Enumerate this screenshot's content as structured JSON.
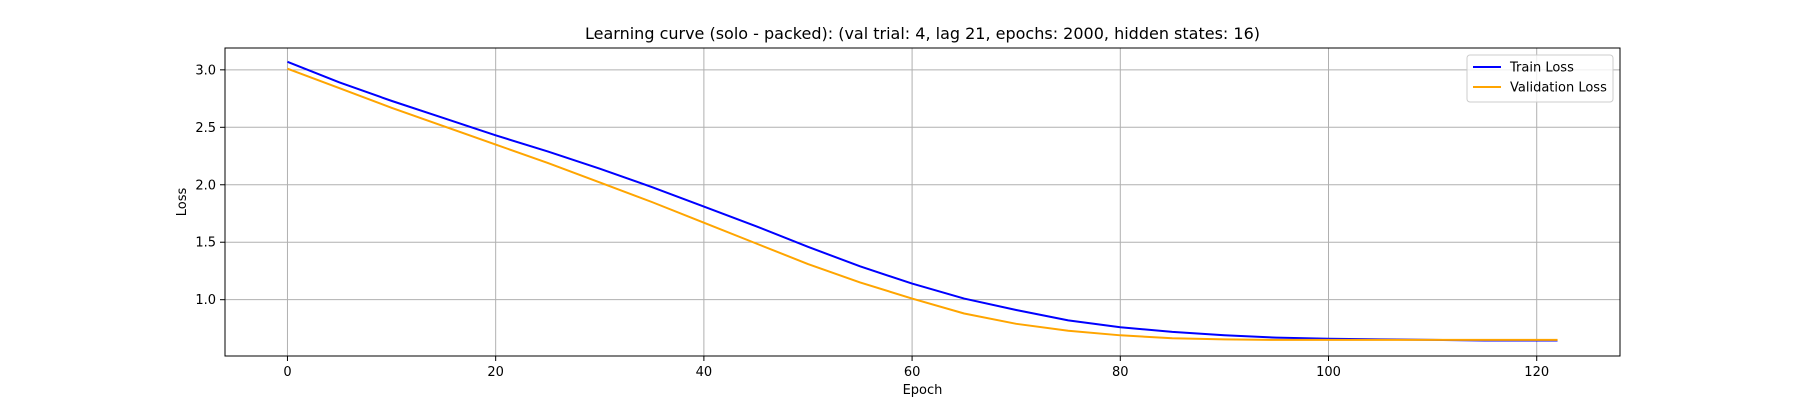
{
  "chart_data": {
    "type": "line",
    "title": "Learning curve (solo - packed): (val trial: 4, lag 21, epochs: 2000, hidden states: 16)",
    "xlabel": "Epoch",
    "ylabel": "Loss",
    "xlim": [
      -6,
      128
    ],
    "ylim": [
      0.51,
      3.19
    ],
    "xticks": [
      0,
      20,
      40,
      60,
      80,
      100,
      120
    ],
    "yticks": [
      1.0,
      1.5,
      2.0,
      2.5,
      3.0
    ],
    "ytick_labels": [
      "1.0",
      "1.5",
      "2.0",
      "2.5",
      "3.0"
    ],
    "grid": true,
    "legend_position": "top-right",
    "series": [
      {
        "name": "Train Loss",
        "color": "#0000ff",
        "x": [
          0,
          5,
          10,
          15,
          20,
          25,
          30,
          35,
          40,
          45,
          50,
          55,
          60,
          65,
          70,
          75,
          80,
          85,
          90,
          95,
          100,
          105,
          110,
          115,
          120,
          122
        ],
        "values": [
          3.07,
          2.89,
          2.73,
          2.58,
          2.43,
          2.29,
          2.14,
          1.98,
          1.81,
          1.64,
          1.46,
          1.29,
          1.14,
          1.01,
          0.91,
          0.82,
          0.76,
          0.72,
          0.69,
          0.67,
          0.66,
          0.655,
          0.65,
          0.645,
          0.645,
          0.645
        ]
      },
      {
        "name": "Validation Loss",
        "color": "#ffa500",
        "x": [
          0,
          5,
          10,
          15,
          20,
          25,
          30,
          35,
          40,
          45,
          50,
          55,
          60,
          65,
          70,
          75,
          80,
          85,
          90,
          95,
          100,
          105,
          110,
          115,
          120,
          122
        ],
        "values": [
          3.01,
          2.84,
          2.67,
          2.51,
          2.35,
          2.19,
          2.02,
          1.85,
          1.67,
          1.49,
          1.31,
          1.15,
          1.01,
          0.88,
          0.79,
          0.73,
          0.69,
          0.665,
          0.655,
          0.65,
          0.65,
          0.65,
          0.65,
          0.65,
          0.65,
          0.65
        ]
      }
    ]
  }
}
